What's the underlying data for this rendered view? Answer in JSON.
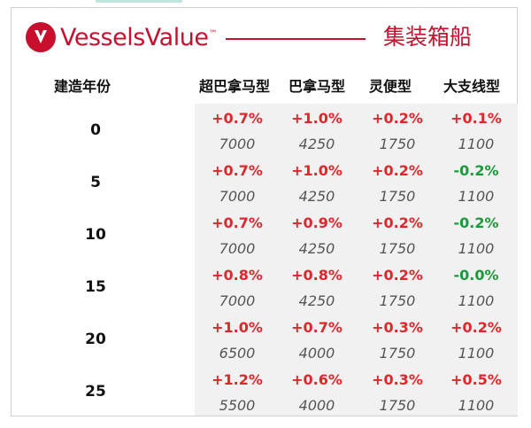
{
  "brand": {
    "name": "VesselsValue",
    "tm": "™"
  },
  "title": "集装箱船",
  "columns": [
    "建造年份",
    "超巴拿马型",
    "巴拿马型",
    "灵便型",
    "大支线型"
  ],
  "rows": [
    {
      "age": "0",
      "pct": [
        "+0.7%",
        "+1.0%",
        "+0.2%",
        "+0.1%"
      ],
      "pct_sign": [
        "pos",
        "pos",
        "pos",
        "pos"
      ],
      "vol": [
        "7000",
        "4250",
        "1750",
        "1100"
      ]
    },
    {
      "age": "5",
      "pct": [
        "+0.7%",
        "+1.0%",
        "+0.2%",
        "-0.2%"
      ],
      "pct_sign": [
        "pos",
        "pos",
        "pos",
        "neg"
      ],
      "vol": [
        "7000",
        "4250",
        "1750",
        "1100"
      ]
    },
    {
      "age": "10",
      "pct": [
        "+0.7%",
        "+0.9%",
        "+0.2%",
        "-0.2%"
      ],
      "pct_sign": [
        "pos",
        "pos",
        "pos",
        "neg"
      ],
      "vol": [
        "7000",
        "4250",
        "1750",
        "1100"
      ]
    },
    {
      "age": "15",
      "pct": [
        "+0.8%",
        "+0.8%",
        "+0.2%",
        "-0.0%"
      ],
      "pct_sign": [
        "pos",
        "pos",
        "pos",
        "neg"
      ],
      "vol": [
        "7000",
        "4250",
        "1750",
        "1100"
      ]
    },
    {
      "age": "20",
      "pct": [
        "+1.0%",
        "+0.7%",
        "+0.3%",
        "+0.2%"
      ],
      "pct_sign": [
        "pos",
        "pos",
        "pos",
        "pos"
      ],
      "vol": [
        "6500",
        "4000",
        "1750",
        "1100"
      ]
    },
    {
      "age": "25",
      "pct": [
        "+1.2%",
        "+0.6%",
        "+0.3%",
        "+0.5%"
      ],
      "pct_sign": [
        "pos",
        "pos",
        "pos",
        "pos"
      ],
      "vol": [
        "5500",
        "4000",
        "1750",
        "1100"
      ]
    }
  ],
  "colors": {
    "brand_red": "#c8102e",
    "positive": "#e0252b",
    "negative": "#1a9a3a",
    "shade": "#f1f1f1"
  },
  "icons": {
    "logo": "vesselsvalue-logo-icon"
  }
}
